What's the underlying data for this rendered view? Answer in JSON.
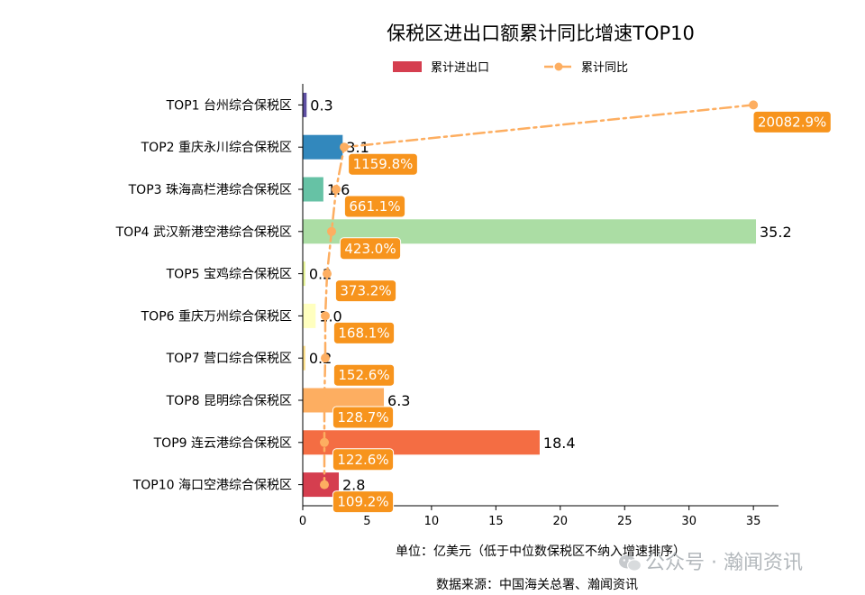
{
  "chart_data": {
    "type": "bar",
    "title": "保税区进出口额累计同比增速TOP10",
    "legend": {
      "placement": "top-center",
      "items": [
        {
          "label": "累计进出口",
          "kind": "bar",
          "color": "#d53e4f"
        },
        {
          "label": "累计同比",
          "kind": "line",
          "color": "#fdae61"
        }
      ]
    },
    "categories": [
      "TOP1 台州综合保税区",
      "TOP2 重庆永川综合保税区",
      "TOP3 珠海高栏港综合保税区",
      "TOP4 武汉新港空港综合保税区",
      "TOP5 宝鸡综合保税区",
      "TOP6 重庆万州综合保税区",
      "TOP7 营口综合保税区",
      "TOP8 昆明综合保税区",
      "TOP9 连云港综合保税区",
      "TOP10 海口空港综合保税区"
    ],
    "series": [
      {
        "name": "累计进出口",
        "values": [
          0.3,
          3.1,
          1.6,
          35.2,
          0.2,
          1.0,
          0.2,
          6.3,
          18.4,
          2.8
        ],
        "value_labels": [
          "0.3",
          "3.1",
          "1.6",
          "35.2",
          "0.2",
          "1.0",
          "0.2",
          "6.3",
          "18.4",
          "2.8"
        ],
        "colors": [
          "#5e4fa2",
          "#3288bd",
          "#66c2a5",
          "#abdda4",
          "#e6f598",
          "#ffffbf",
          "#fee08b",
          "#fdae61",
          "#f46d43",
          "#d53e4f"
        ]
      },
      {
        "name": "累计同比",
        "values": [
          20082.9,
          1159.8,
          661.1,
          423.0,
          373.2,
          168.1,
          152.6,
          128.7,
          122.6,
          109.2
        ],
        "value_labels": [
          "20082.9%",
          "1159.8%",
          "661.1%",
          "423.0%",
          "373.2%",
          "168.1%",
          "152.6%",
          "128.7%",
          "122.6%",
          "109.2%"
        ],
        "color": "#fdae61",
        "label_color": "#f7941d"
      }
    ],
    "xlim": [
      0,
      37
    ],
    "xticks": [
      0,
      5,
      10,
      15,
      20,
      25,
      30,
      35
    ],
    "grid": false,
    "xlabel": "单位：亿美元（低于中位数保税区不纳入增速排序）",
    "source": "数据来源：中国海关总署、瀚闻资讯"
  },
  "watermark": "公众号 · 瀚闻资讯"
}
